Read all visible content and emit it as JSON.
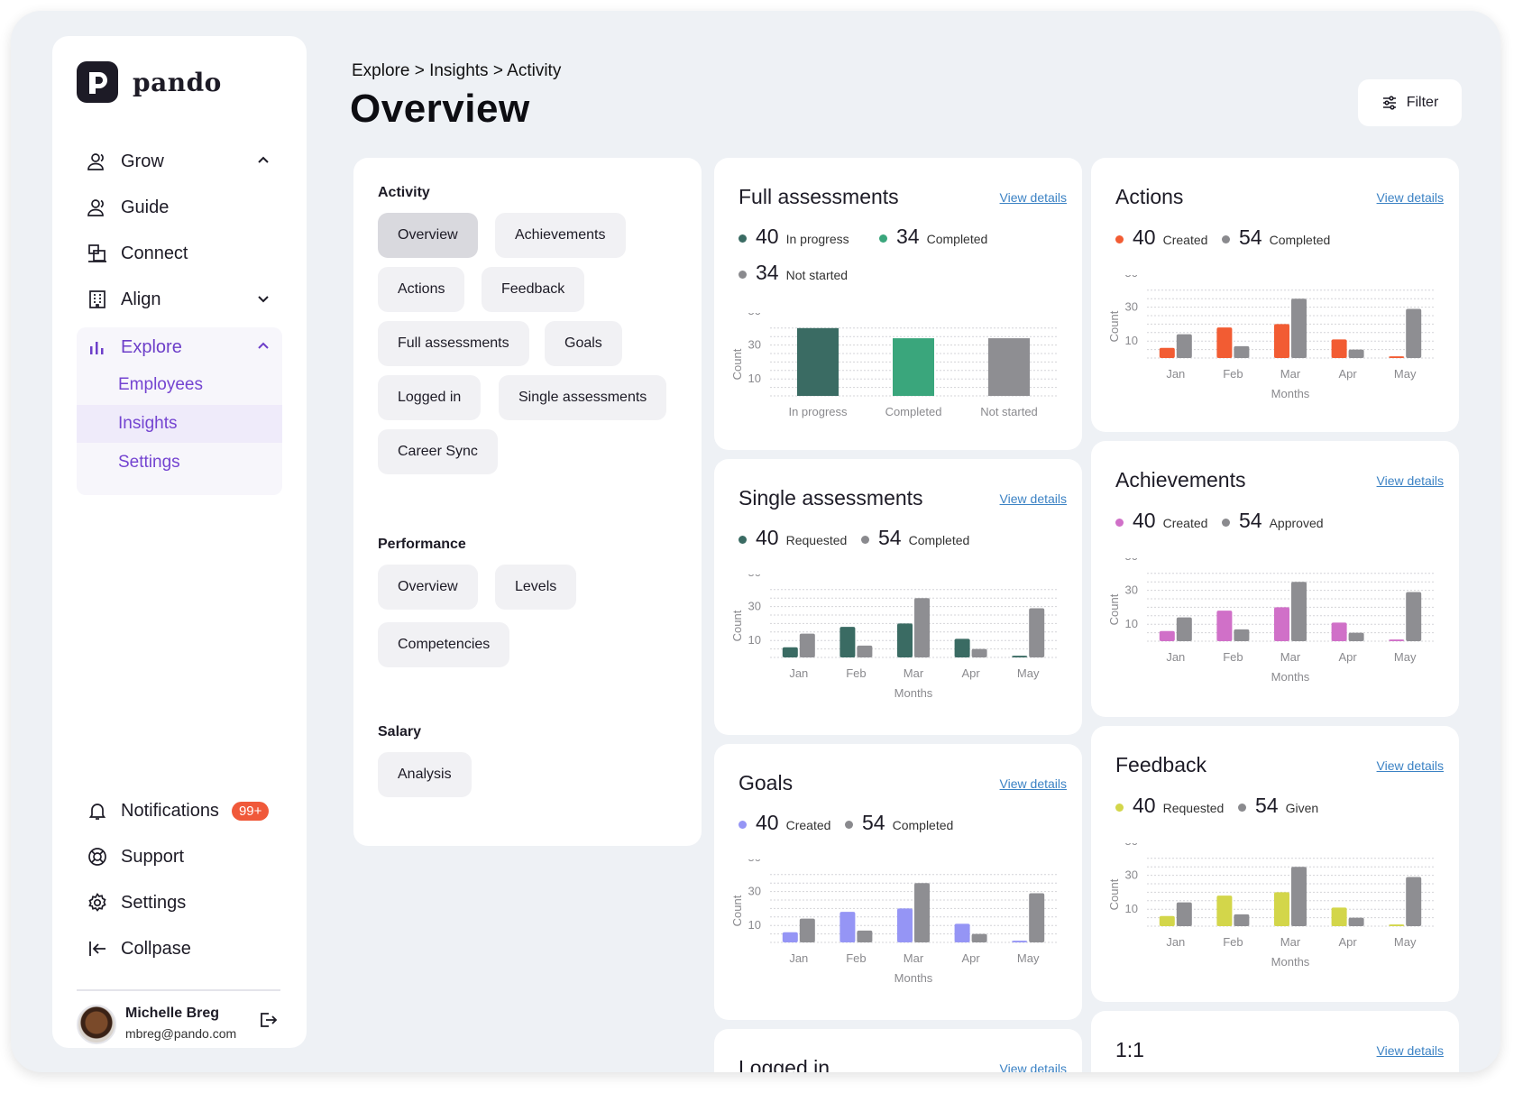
{
  "brand": {
    "name": "pando"
  },
  "breadcrumb": "Explore > Insights > Activity",
  "page_title": "Overview",
  "filter_label": "Filter",
  "sidebar": {
    "nav": [
      {
        "label": "Grow",
        "icon": "users-icon",
        "chevron": "up"
      },
      {
        "label": "Guide",
        "icon": "user-icon"
      },
      {
        "label": "Connect",
        "icon": "network-icon"
      },
      {
        "label": "Align",
        "icon": "building-icon",
        "chevron": "down"
      }
    ],
    "explore": {
      "label": "Explore",
      "icon": "bar-chart-icon",
      "accent": "#6d3fc9",
      "sub": [
        {
          "label": "Employees"
        },
        {
          "label": "Insights",
          "active": true
        },
        {
          "label": "Settings"
        }
      ]
    },
    "bottom": [
      {
        "label": "Notifications",
        "icon": "bell-icon",
        "badge": "99+"
      },
      {
        "label": "Support",
        "icon": "lifebuoy-icon"
      },
      {
        "label": "Settings",
        "icon": "gear-icon"
      },
      {
        "label": "Collpase",
        "icon": "collapse-icon"
      }
    ],
    "user": {
      "name": "Michelle Breg",
      "email": "mbreg@pando.com"
    }
  },
  "activity_panel": {
    "sections": [
      {
        "heading": "Activity",
        "chips": [
          "Overview",
          "Achievements",
          "Actions",
          "Feedback",
          "Full assessments",
          "Goals",
          "Logged in",
          "Single assessments",
          "Career Sync"
        ],
        "selected": "Overview"
      },
      {
        "heading": "Performance",
        "chips": [
          "Overview",
          "Levels",
          "Competencies"
        ]
      },
      {
        "heading": "Salary",
        "chips": [
          "Analysis"
        ]
      }
    ]
  },
  "view_details": "View details",
  "cards": {
    "full_assessments": {
      "title": "Full assessments",
      "stats": [
        {
          "value": "40",
          "label": "In progress",
          "color": "#3a6b63"
        },
        {
          "value": "34",
          "label": "Completed",
          "color": "#3aa67c"
        },
        {
          "value": "34",
          "label": "Not started",
          "color": "#8a8a8e"
        }
      ]
    },
    "actions": {
      "title": "Actions",
      "stats": [
        {
          "value": "40",
          "label": "Created",
          "color": "#f25c33"
        },
        {
          "value": "54",
          "label": "Completed",
          "color": "#8a8a8e"
        }
      ]
    },
    "single_assessments": {
      "title": "Single assessments",
      "stats": [
        {
          "value": "40",
          "label": "Requested",
          "color": "#3a6b63"
        },
        {
          "value": "54",
          "label": "Completed",
          "color": "#8a8a8e"
        }
      ]
    },
    "achievements": {
      "title": "Achievements",
      "stats": [
        {
          "value": "40",
          "label": "Created",
          "color": "#d070c8"
        },
        {
          "value": "54",
          "label": "Approved",
          "color": "#8a8a8e"
        }
      ]
    },
    "goals": {
      "title": "Goals",
      "stats": [
        {
          "value": "40",
          "label": "Created",
          "color": "#9595f5"
        },
        {
          "value": "54",
          "label": "Completed",
          "color": "#8a8a8e"
        }
      ]
    },
    "feedback": {
      "title": "Feedback",
      "stats": [
        {
          "value": "40",
          "label": "Requested",
          "color": "#d3d64a"
        },
        {
          "value": "54",
          "label": "Given",
          "color": "#8a8a8e"
        }
      ]
    },
    "logged_in": {
      "title": "Logged in"
    },
    "one_on_one": {
      "title": "1:1"
    }
  },
  "chart_data": [
    {
      "id": "full_assessments",
      "type": "bar",
      "categories": [
        "In progress",
        "Completed",
        "Not started"
      ],
      "series": [
        {
          "values": [
            40,
            34,
            34
          ]
        }
      ],
      "colors": [
        "#3a6b63",
        "#3aa67c",
        "#8e8e92"
      ],
      "ylabel": "Count",
      "yticks": [
        10,
        30,
        50
      ],
      "ylim": [
        0,
        50
      ],
      "grid": true
    },
    {
      "id": "actions",
      "type": "bar",
      "categories": [
        "Jan",
        "Feb",
        "Mar",
        "Apr",
        "May"
      ],
      "series": [
        {
          "values": [
            6,
            18,
            20,
            11,
            1
          ]
        },
        {
          "values": [
            14,
            7,
            35,
            5,
            29
          ]
        }
      ],
      "colors": [
        "#f25c33",
        "#8e8e92"
      ],
      "xlabel": "Months",
      "ylabel": "Count",
      "yticks": [
        10,
        30,
        50
      ],
      "ylim": [
        0,
        50
      ],
      "grid": true
    },
    {
      "id": "single_assessments",
      "type": "bar",
      "categories": [
        "Jan",
        "Feb",
        "Mar",
        "Apr",
        "May"
      ],
      "series": [
        {
          "values": [
            6,
            18,
            20,
            11,
            1
          ]
        },
        {
          "values": [
            14,
            7,
            35,
            5,
            29
          ]
        }
      ],
      "colors": [
        "#3a6b63",
        "#8e8e92"
      ],
      "xlabel": "Months",
      "ylabel": "Count",
      "yticks": [
        10,
        30,
        50
      ],
      "ylim": [
        0,
        50
      ],
      "grid": true
    },
    {
      "id": "achievements",
      "type": "bar",
      "categories": [
        "Jan",
        "Feb",
        "Mar",
        "Apr",
        "May"
      ],
      "series": [
        {
          "values": [
            6,
            18,
            20,
            11,
            1
          ]
        },
        {
          "values": [
            14,
            7,
            35,
            5,
            29
          ]
        }
      ],
      "colors": [
        "#d070c8",
        "#8e8e92"
      ],
      "xlabel": "Months",
      "ylabel": "Count",
      "yticks": [
        10,
        30,
        50
      ],
      "ylim": [
        0,
        50
      ],
      "grid": true
    },
    {
      "id": "goals",
      "type": "bar",
      "categories": [
        "Jan",
        "Feb",
        "Mar",
        "Apr",
        "May"
      ],
      "series": [
        {
          "values": [
            6,
            18,
            20,
            11,
            1
          ]
        },
        {
          "values": [
            14,
            7,
            35,
            5,
            29
          ]
        }
      ],
      "colors": [
        "#9595f5",
        "#8e8e92"
      ],
      "xlabel": "Months",
      "ylabel": "Count",
      "yticks": [
        10,
        30,
        50
      ],
      "ylim": [
        0,
        50
      ],
      "grid": true
    },
    {
      "id": "feedback",
      "type": "bar",
      "categories": [
        "Jan",
        "Feb",
        "Mar",
        "Apr",
        "May"
      ],
      "series": [
        {
          "values": [
            6,
            18,
            20,
            11,
            1
          ]
        },
        {
          "values": [
            14,
            7,
            35,
            5,
            29
          ]
        }
      ],
      "colors": [
        "#d3d64a",
        "#8e8e92"
      ],
      "xlabel": "Months",
      "ylabel": "Count",
      "yticks": [
        10,
        30,
        50
      ],
      "ylim": [
        0,
        50
      ],
      "grid": true
    }
  ]
}
